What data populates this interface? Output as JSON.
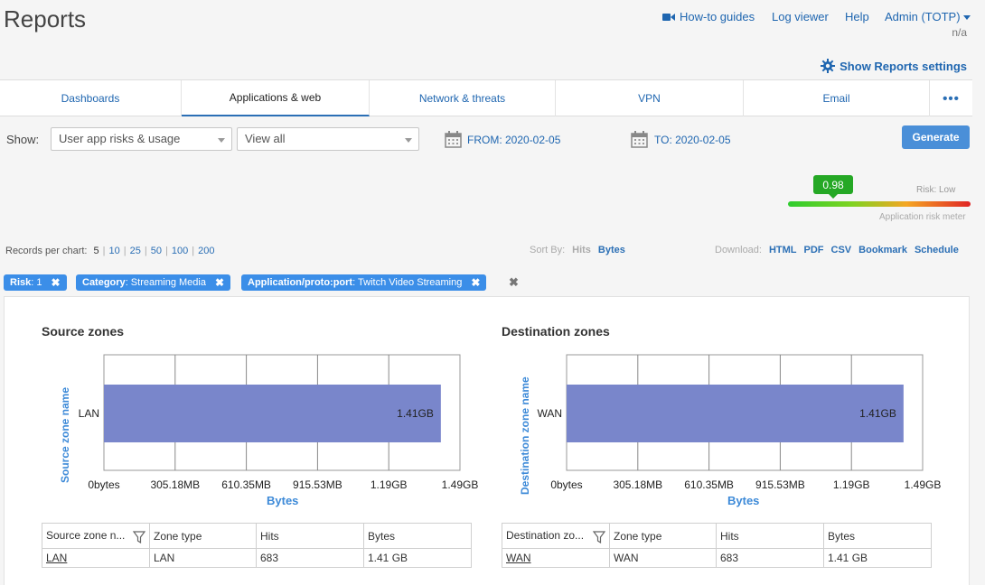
{
  "page": {
    "title": "Reports"
  },
  "topnav": {
    "howto": "How-to guides",
    "log_viewer": "Log viewer",
    "help": "Help",
    "admin": "Admin (TOTP)",
    "admin_sub": "n/a"
  },
  "settings_link": "Show Reports settings",
  "tabs": [
    {
      "label": "Dashboards"
    },
    {
      "label": "Applications & web"
    },
    {
      "label": "Network & threats"
    },
    {
      "label": "VPN"
    },
    {
      "label": "Email"
    },
    {
      "label": "•••"
    }
  ],
  "filters": {
    "show_label": "Show:",
    "report_select": "User app risks & usage",
    "view_select": "View all",
    "from_label": "FROM: 2020-02-05",
    "to_label": "TO: 2020-02-05",
    "generate": "Generate"
  },
  "risk_meter": {
    "value": "0.98",
    "risk_text": "Risk: Low",
    "label": "Application risk meter",
    "colors": {
      "low": "#2ecc2e",
      "high": "#e02424",
      "badge": "#25a825"
    }
  },
  "records": {
    "label": "Records per chart:",
    "options": [
      "5",
      "10",
      "25",
      "50",
      "100",
      "200"
    ],
    "selected": "5"
  },
  "sort": {
    "label": "Sort By:",
    "hits": "Hits",
    "bytes": "Bytes"
  },
  "download": {
    "label": "Download:",
    "html": "HTML",
    "pdf": "PDF",
    "csv": "CSV",
    "bookmark": "Bookmark",
    "schedule": "Schedule"
  },
  "chips": [
    {
      "key": "Risk",
      "value": ": 1"
    },
    {
      "key": "Category",
      "value": ": Streaming Media"
    },
    {
      "key": "Application/proto:port",
      "value": ": Twitch Video Streaming"
    }
  ],
  "chart_data": [
    {
      "type": "bar",
      "title": "Source zones",
      "xlabel": "Bytes",
      "ylabel": "Source zone name",
      "categories": [
        "LAN"
      ],
      "values": [
        1.41
      ],
      "value_labels": [
        "1.41GB"
      ],
      "ticks": [
        "0bytes",
        "305.18MB",
        "610.35MB",
        "915.53MB",
        "1.19GB",
        "1.49GB"
      ],
      "xlim": [
        0,
        1.49
      ],
      "bar_color": "#7986cb"
    },
    {
      "type": "bar",
      "title": "Destination zones",
      "xlabel": "Bytes",
      "ylabel": "Destination zone name",
      "categories": [
        "WAN"
      ],
      "values": [
        1.41
      ],
      "value_labels": [
        "1.41GB"
      ],
      "ticks": [
        "0bytes",
        "305.18MB",
        "610.35MB",
        "915.53MB",
        "1.19GB",
        "1.49GB"
      ],
      "xlim": [
        0,
        1.49
      ],
      "bar_color": "#7986cb"
    }
  ],
  "tables": {
    "source": {
      "headers": [
        "Source zone n...",
        "Zone type",
        "Hits",
        "Bytes"
      ],
      "rows": [
        [
          "LAN",
          "LAN",
          "683",
          "1.41 GB"
        ]
      ]
    },
    "destination": {
      "headers": [
        "Destination zo...",
        "Zone type",
        "Hits",
        "Bytes"
      ],
      "rows": [
        [
          "WAN",
          "WAN",
          "683",
          "1.41 GB"
        ]
      ]
    }
  }
}
